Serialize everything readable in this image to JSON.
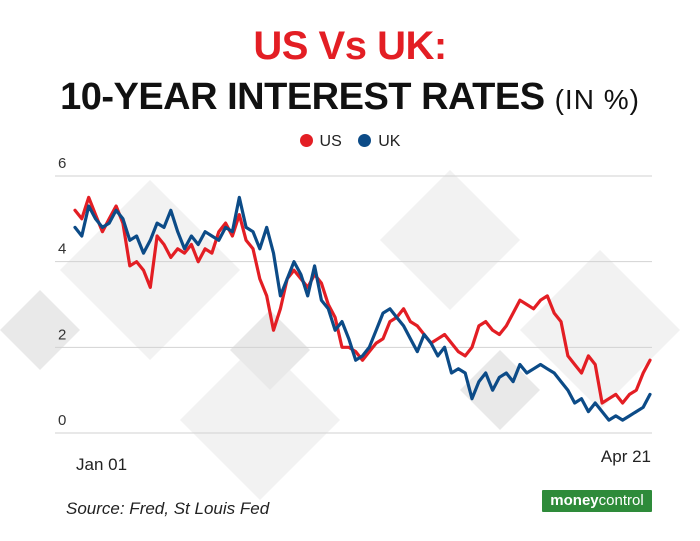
{
  "header": {
    "title_line1": "US Vs UK:",
    "title_line2": "10-YEAR INTEREST RATES",
    "title_unit": "(IN %)"
  },
  "colors": {
    "us": "#e31e24",
    "uk": "#0c4b87",
    "title_red": "#e31e24",
    "grid": "#cfcfcf",
    "brand": "#2e8b3a"
  },
  "footer": {
    "source": "Source: Fred, St Louis Fed",
    "brand_part1": "money",
    "brand_part2": "control"
  },
  "chart_data": {
    "type": "line",
    "ylim": [
      0,
      6
    ],
    "y_ticks": [
      "0",
      "2",
      "4",
      "6"
    ],
    "x_tick_labels": [
      "Jan 01",
      "Apr 21"
    ],
    "grid": true,
    "legend_position": "top-center",
    "x_range": [
      0,
      84
    ],
    "series": [
      {
        "name": "US",
        "color": "#e31e24",
        "values": [
          5.2,
          5.0,
          5.5,
          5.1,
          4.7,
          5.0,
          5.3,
          4.9,
          3.9,
          4.0,
          3.8,
          3.4,
          4.6,
          4.4,
          4.1,
          4.3,
          4.2,
          4.4,
          4.0,
          4.3,
          4.2,
          4.7,
          4.9,
          4.6,
          5.1,
          4.5,
          4.3,
          3.6,
          3.2,
          2.4,
          2.9,
          3.6,
          3.8,
          3.6,
          3.4,
          3.7,
          3.5,
          3.0,
          2.7,
          2.0,
          2.0,
          1.9,
          1.7,
          1.9,
          2.1,
          2.2,
          2.6,
          2.7,
          2.9,
          2.6,
          2.5,
          2.3,
          2.1,
          2.2,
          2.3,
          2.1,
          1.9,
          1.8,
          2.0,
          2.5,
          2.6,
          2.4,
          2.3,
          2.5,
          2.8,
          3.1,
          3.0,
          2.9,
          3.1,
          3.2,
          2.8,
          2.6,
          1.8,
          1.6,
          1.4,
          1.8,
          1.6,
          0.7,
          0.8,
          0.9,
          0.7,
          0.9,
          1.0,
          1.4,
          1.7
        ]
      },
      {
        "name": "UK",
        "color": "#0c4b87",
        "values": [
          4.8,
          4.6,
          5.3,
          5.0,
          4.8,
          4.9,
          5.2,
          5.0,
          4.5,
          4.6,
          4.2,
          4.5,
          4.9,
          4.8,
          5.2,
          4.7,
          4.3,
          4.6,
          4.4,
          4.7,
          4.6,
          4.5,
          4.8,
          4.7,
          5.5,
          4.8,
          4.7,
          4.3,
          4.8,
          4.2,
          3.2,
          3.6,
          4.0,
          3.7,
          3.2,
          3.9,
          3.1,
          2.9,
          2.4,
          2.6,
          2.2,
          1.7,
          1.8,
          2.0,
          2.4,
          2.8,
          2.9,
          2.7,
          2.5,
          2.2,
          1.9,
          2.3,
          2.1,
          1.8,
          2.0,
          1.4,
          1.5,
          1.4,
          0.8,
          1.2,
          1.4,
          1.0,
          1.3,
          1.4,
          1.2,
          1.6,
          1.4,
          1.5,
          1.6,
          1.5,
          1.4,
          1.2,
          1.0,
          0.7,
          0.8,
          0.5,
          0.7,
          0.5,
          0.3,
          0.4,
          0.3,
          0.4,
          0.5,
          0.6,
          0.9
        ]
      }
    ]
  }
}
